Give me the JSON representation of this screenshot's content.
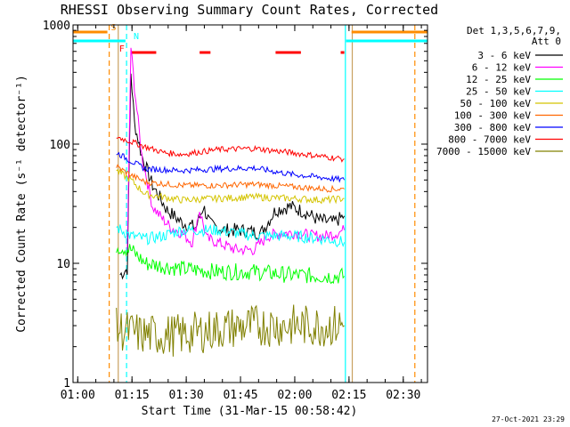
{
  "chart_data": {
    "type": "line",
    "title": "RHESSI Observing Summary Count Rates, Corrected",
    "xlabel": "Start Time (31-Mar-15 00:58:42)",
    "ylabel": "Corrected Count Rate (s⁻¹ detector⁻¹)",
    "y_scale": "log",
    "ylim": [
      1,
      1000
    ],
    "y_ticks": [
      {
        "v": 1,
        "label": "1"
      },
      {
        "v": 10,
        "label": "10"
      },
      {
        "v": 100,
        "label": "100"
      },
      {
        "v": 1000,
        "label": "1000"
      }
    ],
    "xlim_min": [
      0,
      98
    ],
    "x_ticks": [
      {
        "m": 1.3,
        "label": "01:00"
      },
      {
        "m": 16.3,
        "label": "01:15"
      },
      {
        "m": 31.3,
        "label": "01:30"
      },
      {
        "m": 46.3,
        "label": "01:45"
      },
      {
        "m": 61.3,
        "label": "02:00"
      },
      {
        "m": 76.3,
        "label": "02:15"
      },
      {
        "m": 91.3,
        "label": "02:30"
      }
    ],
    "detector_info": [
      "Det 1,3,5,6,7,9,",
      "Att 0"
    ],
    "legend": [
      {
        "label": "3 - 6 keV",
        "color": "#000000"
      },
      {
        "label": "6 - 12 keV",
        "color": "#ff00ff"
      },
      {
        "label": "12 - 25 keV",
        "color": "#00ff00"
      },
      {
        "label": "25 - 50 keV",
        "color": "#00ffff"
      },
      {
        "label": "50 - 100 keV",
        "color": "#d4c400"
      },
      {
        "label": "100 - 300 keV",
        "color": "#ff6600"
      },
      {
        "label": "300 - 800 keV",
        "color": "#0000ff"
      },
      {
        "label": "800 - 7000 keV",
        "color": "#ff0000"
      },
      {
        "label": "7000 - 15000 keV",
        "color": "#808000"
      }
    ],
    "series": [
      {
        "name": "3 - 6 keV",
        "color": "#000000",
        "noise": 0.06,
        "x": [
          13,
          15,
          16,
          17,
          19,
          22,
          26,
          30,
          34,
          36,
          38,
          42,
          46,
          52,
          56,
          60,
          64,
          68,
          72,
          75
        ],
        "y": [
          8,
          9,
          400,
          150,
          80,
          45,
          28,
          22,
          20,
          30,
          21,
          19,
          19,
          18,
          28,
          30,
          27,
          23,
          22,
          25
        ]
      },
      {
        "name": "6 - 12 keV",
        "color": "#ff00ff",
        "noise": 0.05,
        "x": [
          15,
          16,
          17,
          19,
          22,
          24,
          27,
          30,
          33,
          35,
          37,
          40,
          45,
          50,
          54,
          58,
          62,
          66,
          70,
          73,
          75
        ],
        "y": [
          12,
          650,
          300,
          80,
          30,
          25,
          20,
          18,
          15,
          28,
          16,
          15,
          13,
          13,
          17,
          18,
          18,
          17,
          17,
          18,
          19
        ]
      },
      {
        "name": "12 - 25 keV",
        "color": "#00ff00",
        "noise": 0.07,
        "x": [
          12,
          16,
          20,
          30,
          40,
          50,
          60,
          70,
          75
        ],
        "y": [
          14,
          13,
          10,
          9,
          8.5,
          8.5,
          8,
          7.8,
          7.8
        ]
      },
      {
        "name": "25 - 50 keV",
        "color": "#00ffff",
        "noise": 0.05,
        "x": [
          12,
          16,
          20,
          25,
          30,
          40,
          50,
          60,
          70,
          75
        ],
        "y": [
          20,
          17,
          16,
          17,
          19,
          19,
          17,
          17,
          16,
          15
        ]
      },
      {
        "name": "50 - 100 keV",
        "color": "#d4c400",
        "noise": 0.03,
        "x": [
          12,
          16,
          20,
          30,
          40,
          50,
          60,
          70,
          75
        ],
        "y": [
          60,
          50,
          38,
          34,
          35,
          36,
          35,
          34,
          35
        ]
      },
      {
        "name": "100 - 300 keV",
        "color": "#ff6600",
        "noise": 0.025,
        "x": [
          12,
          16,
          20,
          30,
          40,
          50,
          60,
          70,
          75
        ],
        "y": [
          65,
          55,
          48,
          45,
          45,
          46,
          44,
          42,
          42
        ]
      },
      {
        "name": "300 - 800 keV",
        "color": "#0000ff",
        "noise": 0.025,
        "x": [
          12,
          16,
          20,
          30,
          40,
          50,
          60,
          70,
          75
        ],
        "y": [
          85,
          72,
          62,
          60,
          62,
          63,
          56,
          52,
          50
        ]
      },
      {
        "name": "800 - 7000 keV",
        "color": "#ff0000",
        "noise": 0.025,
        "x": [
          12,
          16,
          20,
          25,
          30,
          40,
          50,
          60,
          70,
          75
        ],
        "y": [
          115,
          105,
          95,
          85,
          82,
          90,
          92,
          85,
          78,
          75
        ]
      },
      {
        "name": "7000 - 15000 keV",
        "color": "#808000",
        "noise": 0.18,
        "x": [
          12,
          20,
          30,
          40,
          50,
          60,
          70,
          75
        ],
        "y": [
          2.8,
          2.5,
          2.5,
          2.8,
          3,
          3,
          3,
          3
        ]
      }
    ],
    "vertical_markers": [
      {
        "m": 10,
        "color": "#ff8c00",
        "dash": true
      },
      {
        "m": 12.5,
        "color": "#c8a060",
        "dash": false
      },
      {
        "m": 14.8,
        "color": "#00ffff",
        "dash": true
      },
      {
        "m": 75.3,
        "color": "#00ffff",
        "dash": false
      },
      {
        "m": 77.2,
        "color": "#c8a060",
        "dash": false
      },
      {
        "m": 94.5,
        "color": "#ff8c00",
        "dash": true
      }
    ],
    "flags": [
      {
        "name": "S",
        "color": "#ff8c00",
        "y": 36,
        "segments": [
          [
            0,
            9.5
          ],
          [
            77,
            98
          ]
        ],
        "label_m": 11.2
      },
      {
        "name": "N",
        "color": "#00ffff",
        "y": 46,
        "segments": [
          [
            0,
            14.5
          ],
          [
            75.5,
            98
          ]
        ],
        "label_m": 17.5
      },
      {
        "name": "F",
        "color": "#ff0000",
        "y": 59,
        "segments": [
          [
            16,
            23
          ],
          [
            35,
            38
          ],
          [
            56,
            63
          ],
          [
            74,
            75
          ]
        ],
        "label_m": 13.5
      }
    ]
  },
  "footer": {
    "date": "27-Oct-2021 23:29"
  }
}
